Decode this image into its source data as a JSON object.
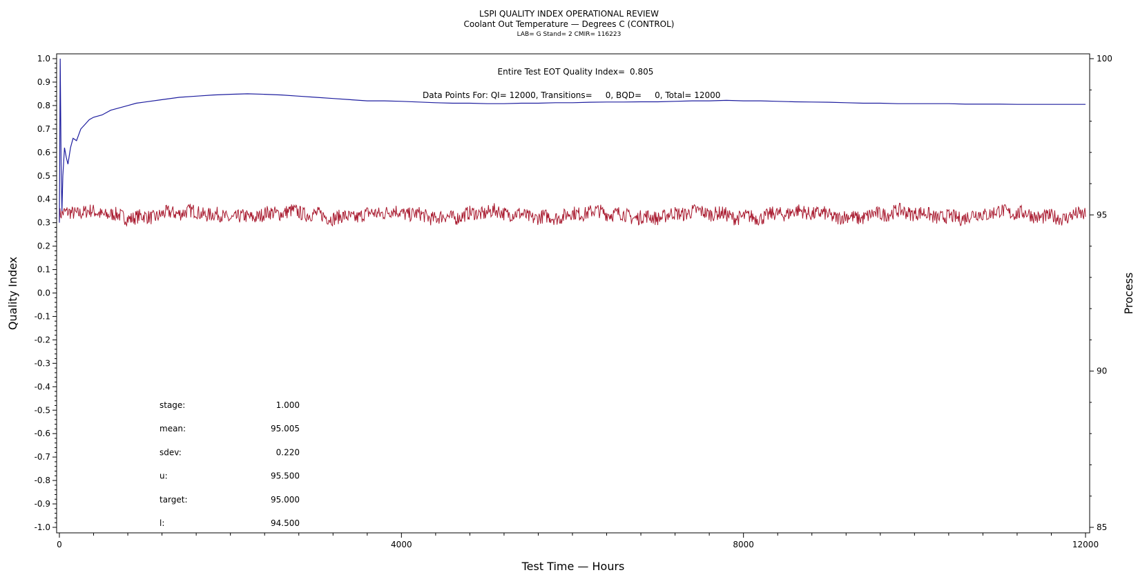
{
  "chart_data": {
    "type": "line",
    "title": "LSPI QUALITY INDEX OPERATIONAL REVIEW",
    "subtitle": "Coolant Out Temperature — Degrees C (CONTROL)",
    "subtitle2": "LAB= G Stand= 2 CMIR= 116223",
    "xlabel": "Test Time — Hours",
    "ylabel_left": "Quality Index",
    "ylabel_right": "Process",
    "xlim": [
      0,
      12000
    ],
    "ylim_left": [
      -1.0,
      1.0
    ],
    "ylim_right": [
      85,
      100
    ],
    "x_ticks": [
      "0",
      "4000",
      "8000",
      "12000"
    ],
    "y_left_ticks": [
      "1.0",
      "0.9",
      "0.8",
      "0.7",
      "0.6",
      "0.5",
      "0.4",
      "0.3",
      "0.2",
      "0.1",
      "0.0",
      "-0.1",
      "-0.2",
      "-0.3",
      "-0.4",
      "-0.5",
      "-0.6",
      "-0.7",
      "-0.8",
      "-0.9",
      "-1.0"
    ],
    "y_right_ticks": [
      "100",
      "95",
      "90",
      "85"
    ],
    "annotations": {
      "eot_label": "Entire Test EOT Quality Index=",
      "eot_value": "0.805",
      "points_text": "Data Points For: QI= 12000, Transitions=     0, BQD=     0, Total= 12000"
    },
    "stats": [
      {
        "label": "stage:",
        "value": "1.000"
      },
      {
        "label": "mean:",
        "value": "95.005"
      },
      {
        "label": "sdev:",
        "value": "0.220"
      },
      {
        "label": "u:",
        "value": "95.500"
      },
      {
        "label": "target:",
        "value": "95.000"
      },
      {
        "label": "l:",
        "value": "94.500"
      }
    ],
    "series": [
      {
        "axis": "left",
        "color": "#1c1c9e",
        "x": [
          0,
          10,
          20,
          30,
          40,
          60,
          80,
          100,
          130,
          160,
          200,
          250,
          300,
          350,
          400,
          500,
          600,
          700,
          800,
          900,
          1000,
          1200,
          1400,
          1600,
          1800,
          2000,
          2200,
          2400,
          2600,
          2800,
          3000,
          3200,
          3400,
          3600,
          3800,
          4000,
          4200,
          4400,
          4600,
          4800,
          5000,
          5200,
          5400,
          5600,
          5800,
          6000,
          6200,
          6400,
          6600,
          6800,
          7000,
          7200,
          7400,
          7600,
          7800,
          8000,
          8200,
          8400,
          8600,
          8800,
          9000,
          9200,
          9400,
          9600,
          9800,
          10000,
          10200,
          10400,
          10600,
          10800,
          11000,
          11200,
          11400,
          11600,
          11800,
          12000
        ],
        "y": [
          0.3,
          1.0,
          0.55,
          0.35,
          0.5,
          0.62,
          0.58,
          0.55,
          0.62,
          0.66,
          0.65,
          0.7,
          0.72,
          0.74,
          0.75,
          0.76,
          0.78,
          0.79,
          0.8,
          0.81,
          0.815,
          0.825,
          0.835,
          0.84,
          0.845,
          0.848,
          0.85,
          0.848,
          0.845,
          0.84,
          0.835,
          0.83,
          0.825,
          0.82,
          0.82,
          0.818,
          0.815,
          0.812,
          0.81,
          0.81,
          0.808,
          0.808,
          0.81,
          0.81,
          0.812,
          0.812,
          0.814,
          0.815,
          0.815,
          0.816,
          0.816,
          0.818,
          0.82,
          0.82,
          0.822,
          0.82,
          0.82,
          0.818,
          0.816,
          0.815,
          0.814,
          0.812,
          0.81,
          0.81,
          0.808,
          0.808,
          0.808,
          0.808,
          0.806,
          0.806,
          0.806,
          0.805,
          0.805,
          0.805,
          0.805,
          0.805
        ]
      },
      {
        "axis": "right",
        "color": "#a8192e",
        "mean": 95.005,
        "sdev": 0.22,
        "count": 12000,
        "x_range": [
          0,
          12000
        ]
      }
    ]
  }
}
